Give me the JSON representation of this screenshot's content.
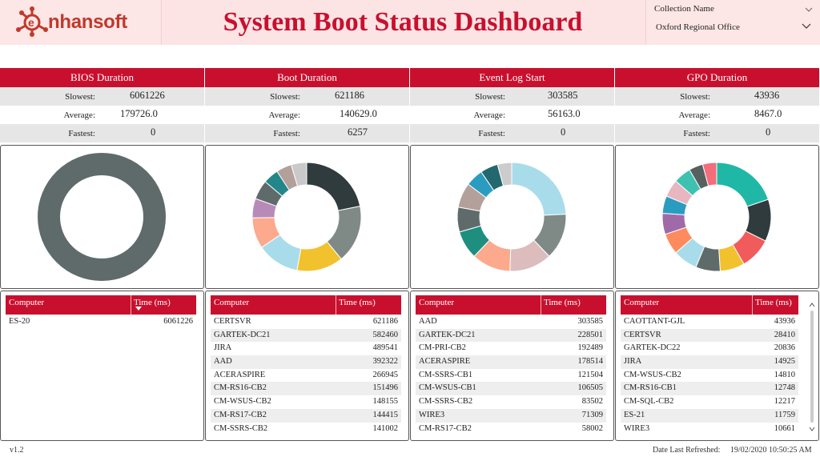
{
  "header": {
    "logo_text": "nhansoft",
    "title": "System Boot Status Dashboard"
  },
  "filter": {
    "label": "Collection Name",
    "value": "Oxford Regional Office"
  },
  "stat_labels": {
    "slowest": "Slowest:",
    "average": "Average:",
    "fastest": "Fastest:"
  },
  "table_headers": {
    "computer": "Computer",
    "time": "Time (ms)"
  },
  "panels": [
    {
      "title": "BIOS Duration",
      "slowest": "6061226",
      "average": "179726.0",
      "fastest": "0",
      "rows": [
        {
          "computer": "ES-20",
          "time": "6061226"
        }
      ]
    },
    {
      "title": "Boot Duration",
      "slowest": "621186",
      "average": "140629.0",
      "fastest": "6257",
      "rows": [
        {
          "computer": "CERTSVR",
          "time": "621186"
        },
        {
          "computer": "GARTEK-DC21",
          "time": "582460"
        },
        {
          "computer": "JIRA",
          "time": "489541"
        },
        {
          "computer": "AAD",
          "time": "392322"
        },
        {
          "computer": "ACERASPIRE",
          "time": "266945"
        },
        {
          "computer": "CM-RS16-CB2",
          "time": "151496"
        },
        {
          "computer": "CM-WSUS-CB2",
          "time": "148155"
        },
        {
          "computer": "CM-RS17-CB2",
          "time": "144415"
        },
        {
          "computer": "CM-SSRS-CB2",
          "time": "141002"
        }
      ]
    },
    {
      "title": "Event Log Start",
      "slowest": "303585",
      "average": "56163.0",
      "fastest": "0",
      "rows": [
        {
          "computer": "AAD",
          "time": "303585"
        },
        {
          "computer": "GARTEK-DC21",
          "time": "228501"
        },
        {
          "computer": "CM-PRI-CB2",
          "time": "192489"
        },
        {
          "computer": "ACERASPIRE",
          "time": "178514"
        },
        {
          "computer": "CM-SSRS-CB1",
          "time": "121504"
        },
        {
          "computer": "CM-WSUS-CB1",
          "time": "106505"
        },
        {
          "computer": "CM-SSRS-CB2",
          "time": "83502"
        },
        {
          "computer": "WIRE3",
          "time": "71309"
        },
        {
          "computer": "CM-RS17-CB2",
          "time": "58002"
        }
      ]
    },
    {
      "title": "GPO Duration",
      "slowest": "43936",
      "average": "8467.0",
      "fastest": "0",
      "rows": [
        {
          "computer": "CAOTTANT-GJL",
          "time": "43936"
        },
        {
          "computer": "CERTSVR",
          "time": "28410"
        },
        {
          "computer": "GARTEK-DC22",
          "time": "20836"
        },
        {
          "computer": "JIRA",
          "time": "14925"
        },
        {
          "computer": "CM-WSUS-CB2",
          "time": "14810"
        },
        {
          "computer": "CM-RS16-CB1",
          "time": "12748"
        },
        {
          "computer": "CM-SQL-CB2",
          "time": "12217"
        },
        {
          "computer": "ES-21",
          "time": "11759"
        },
        {
          "computer": "WIRE3",
          "time": "10661"
        }
      ]
    }
  ],
  "chart_data": [
    {
      "type": "pie",
      "values": [
        1
      ],
      "colors": [
        "#5f6b6b"
      ]
    },
    {
      "type": "pie",
      "values": [
        19,
        15,
        12,
        11,
        8,
        5,
        5,
        4,
        4,
        4
      ],
      "colors": [
        "#2f3b3d",
        "#7f8a86",
        "#f2c12e",
        "#a9dcea",
        "#fca98d",
        "#b88ab8",
        "#5f6b6b",
        "#23868a",
        "#b3a09b",
        "#c9c9c9"
      ]
    },
    {
      "type": "pie",
      "values": [
        23,
        13,
        12,
        11,
        8,
        7,
        7,
        5,
        5,
        4
      ],
      "colors": [
        "#a9dcea",
        "#7f8a86",
        "#dcbcbc",
        "#fca98d",
        "#1e8f7e",
        "#5f6b6b",
        "#b3a09b",
        "#2a9cc0",
        "#23686e",
        "#cccccc"
      ]
    },
    {
      "type": "pie",
      "values": [
        19,
        12,
        9,
        7,
        7,
        7,
        6,
        6,
        5,
        5,
        5,
        4,
        4
      ],
      "colors": [
        "#1fb8a6",
        "#2f3b3d",
        "#f25b5b",
        "#f2c12e",
        "#5f6b6b",
        "#a9dcea",
        "#fd8b5e",
        "#a06aa8",
        "#2a9cc0",
        "#e7b6c1",
        "#3fc1b0",
        "#56605f",
        "#f36d7a"
      ]
    }
  ],
  "footer": {
    "version": "v1.2",
    "refreshed_label": "Date Last Refreshed:",
    "refreshed_value": "19/02/2020 10:50:25 AM"
  }
}
